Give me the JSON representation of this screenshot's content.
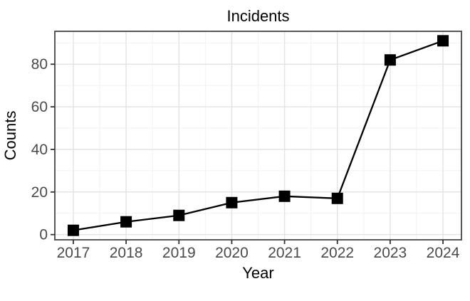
{
  "chart_data": {
    "type": "line",
    "title": "Incidents",
    "xlabel": "Year",
    "ylabel": "Counts",
    "x": [
      2017,
      2018,
      2019,
      2020,
      2021,
      2022,
      2023,
      2024
    ],
    "series": [
      {
        "name": "Incidents",
        "values": [
          2,
          6,
          9,
          15,
          18,
          17,
          82,
          91
        ]
      }
    ],
    "x_ticks": [
      2017,
      2018,
      2019,
      2020,
      2021,
      2022,
      2023,
      2024
    ],
    "y_ticks": [
      0,
      20,
      40,
      60,
      80
    ],
    "x_minor_ticks": [
      2017.5,
      2018.5,
      2019.5,
      2020.5,
      2021.5,
      2022.5,
      2023.5
    ],
    "y_minor_ticks": [
      10,
      30,
      50,
      70,
      90
    ],
    "xlim": [
      2016.65,
      2024.35
    ],
    "ylim": [
      -2.45,
      95.45
    ],
    "grid": "on",
    "legend": "none",
    "marker": "filled-square",
    "line_color": "#000000",
    "marker_color": "#000000",
    "background_color": "#ffffff",
    "grid_major_color": "#e4e4e4",
    "grid_minor_color": "#f1f1f1",
    "panel_border_color": "#454545",
    "axis_tick_color": "#333333",
    "tick_label_color": "#4a4a4a",
    "title_color": "#000000"
  }
}
